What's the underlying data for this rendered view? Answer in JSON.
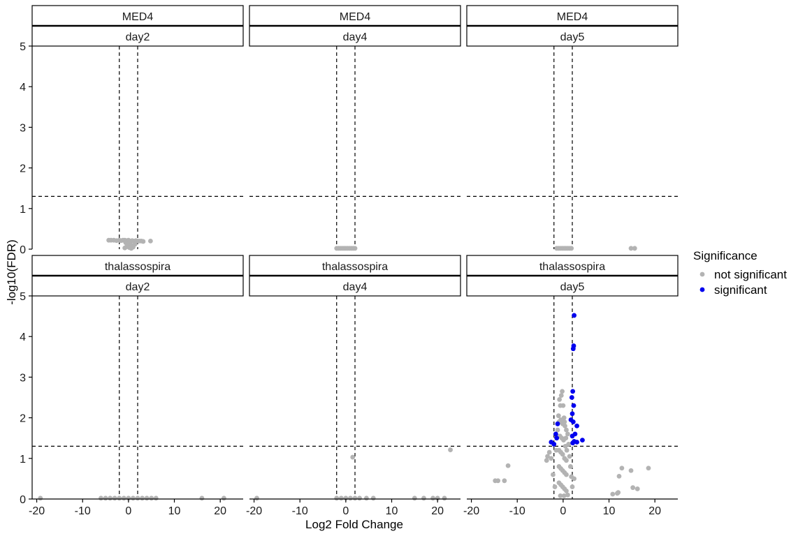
{
  "chart_data": {
    "type": "scatter",
    "title": "",
    "xlabel": "Log2 Fold Change",
    "ylabel": "-log10(FDR)",
    "xlim": [
      -21,
      25
    ],
    "ylim": [
      0,
      5
    ],
    "x_ticks": [
      -20,
      -10,
      0,
      10,
      20
    ],
    "y_ticks": [
      0,
      1,
      2,
      3,
      4,
      5
    ],
    "x_tick_labels": [
      "-20",
      "-10",
      "0",
      "10",
      "20"
    ],
    "y_tick_labels": [
      "0",
      "1",
      "2",
      "3",
      "4",
      "5"
    ],
    "vlines": [
      -2,
      2
    ],
    "hline": 1.3,
    "grid": false,
    "legend": {
      "title": "Significance",
      "position": "right",
      "entries": [
        {
          "label": "not significant",
          "color": "#b3b3b3"
        },
        {
          "label": "significant",
          "color": "#0000ee"
        }
      ]
    },
    "facets": [
      {
        "strain": "MED4",
        "day": "day2",
        "not_significant": [
          [
            -4.3,
            0.22
          ],
          [
            -3.8,
            0.22
          ],
          [
            -3.2,
            0.22
          ],
          [
            -2.6,
            0.21
          ],
          [
            -2.0,
            0.22
          ],
          [
            -1.6,
            0.21
          ],
          [
            -1.2,
            0.22
          ],
          [
            -0.8,
            0.22
          ],
          [
            -0.4,
            0.21
          ],
          [
            0,
            0.22
          ],
          [
            0.4,
            0.2
          ],
          [
            0.8,
            0.21
          ],
          [
            1.2,
            0.2
          ],
          [
            1.6,
            0.21
          ],
          [
            2.0,
            0.2
          ],
          [
            2.4,
            0.2
          ],
          [
            2.8,
            0.2
          ],
          [
            3.2,
            0.19
          ],
          [
            4.8,
            0.2
          ],
          [
            -0.6,
            0.16
          ],
          [
            -0.2,
            0.12
          ],
          [
            0.2,
            0.14
          ],
          [
            0.6,
            0.1
          ],
          [
            1.0,
            0.08
          ],
          [
            -0.4,
            0.06
          ],
          [
            0.2,
            0.04
          ],
          [
            0.6,
            0.02
          ],
          [
            1.0,
            0.05
          ],
          [
            1.4,
            0.12
          ],
          [
            -0.8,
            0.03
          ]
        ],
        "significant": []
      },
      {
        "strain": "MED4",
        "day": "day4",
        "not_significant": [
          [
            -2.0,
            0.02
          ],
          [
            -1.6,
            0.02
          ],
          [
            -1.2,
            0.02
          ],
          [
            -0.8,
            0.02
          ],
          [
            -0.4,
            0.02
          ],
          [
            0,
            0.02
          ],
          [
            0.4,
            0.02
          ],
          [
            0.8,
            0.02
          ],
          [
            1.2,
            0.02
          ],
          [
            1.6,
            0.02
          ],
          [
            2.0,
            0.02
          ]
        ],
        "significant": []
      },
      {
        "strain": "MED4",
        "day": "day5",
        "not_significant": [
          [
            -1.4,
            0.02
          ],
          [
            -1.0,
            0.02
          ],
          [
            -0.6,
            0.02
          ],
          [
            -0.2,
            0.02
          ],
          [
            0.2,
            0.02
          ],
          [
            0.6,
            0.02
          ],
          [
            1.0,
            0.02
          ],
          [
            1.4,
            0.02
          ],
          [
            1.8,
            0.02
          ],
          [
            14.8,
            0.02
          ],
          [
            15.6,
            0.02
          ]
        ],
        "significant": []
      },
      {
        "strain": "thalassospira",
        "day": "day2",
        "not_significant": [
          [
            -19.2,
            0.02
          ],
          [
            -6.0,
            0.02
          ],
          [
            -5.0,
            0.02
          ],
          [
            -4.0,
            0.02
          ],
          [
            -3.0,
            0.02
          ],
          [
            -2.0,
            0.02
          ],
          [
            -1.0,
            0.02
          ],
          [
            0,
            0.02
          ],
          [
            1.0,
            0.02
          ],
          [
            2.0,
            0.02
          ],
          [
            3.0,
            0.02
          ],
          [
            4.0,
            0.02
          ],
          [
            5.0,
            0.02
          ],
          [
            6.0,
            0.02
          ],
          [
            16.0,
            0.02
          ],
          [
            20.8,
            0.02
          ]
        ],
        "significant": []
      },
      {
        "strain": "thalassospira",
        "day": "day4",
        "not_significant": [
          [
            -19.4,
            0.02
          ],
          [
            -2.0,
            0.02
          ],
          [
            -1.0,
            0.02
          ],
          [
            0,
            0.02
          ],
          [
            1.0,
            0.02
          ],
          [
            2.0,
            0.02
          ],
          [
            3.0,
            0.02
          ],
          [
            4.5,
            0.02
          ],
          [
            6.0,
            0.02
          ],
          [
            15.0,
            0.02
          ],
          [
            17.0,
            0.02
          ],
          [
            19.0,
            0.02
          ],
          [
            20.0,
            0.02
          ],
          [
            21.5,
            0.02
          ],
          [
            1.5,
            1.03
          ],
          [
            22.8,
            1.21
          ]
        ],
        "significant": []
      },
      {
        "strain": "thalassospira",
        "day": "day5",
        "not_significant": [
          [
            -14.8,
            0.45
          ],
          [
            -14.2,
            0.45
          ],
          [
            -12.8,
            0.45
          ],
          [
            -12.0,
            0.82
          ],
          [
            -3.6,
            0.95
          ],
          [
            -3.4,
            1.05
          ],
          [
            -3.0,
            1.15
          ],
          [
            -2.6,
            1.0
          ],
          [
            -2.2,
            0.6
          ],
          [
            -1.8,
            0.3
          ],
          [
            -1.5,
            1.2
          ],
          [
            -1.2,
            1.7
          ],
          [
            -1.0,
            2.05
          ],
          [
            -0.8,
            2.45
          ],
          [
            -0.6,
            2.3
          ],
          [
            -0.4,
            2.55
          ],
          [
            -0.2,
            2.65
          ],
          [
            0,
            2.3
          ],
          [
            0.2,
            2.0
          ],
          [
            0.4,
            1.8
          ],
          [
            0.6,
            1.5
          ],
          [
            0.8,
            1.2
          ],
          [
            1.0,
            1.6
          ],
          [
            1.2,
            1.35
          ],
          [
            1.4,
            1.05
          ],
          [
            1.6,
            0.8
          ],
          [
            1.8,
            0.55
          ],
          [
            2.0,
            0.3
          ],
          [
            2.4,
            0.5
          ],
          [
            -0.9,
            1.9
          ],
          [
            -0.5,
            1.95
          ],
          [
            -0.1,
            1.85
          ],
          [
            0.3,
            1.9
          ],
          [
            0.7,
            1.7
          ],
          [
            -0.7,
            1.55
          ],
          [
            -0.3,
            1.5
          ],
          [
            0.1,
            1.45
          ],
          [
            0.5,
            1.3
          ],
          [
            -0.9,
            1.2
          ],
          [
            -0.5,
            1.15
          ],
          [
            -0.1,
            1.1
          ],
          [
            0.3,
            1.0
          ],
          [
            0.7,
            0.95
          ],
          [
            -0.9,
            0.8
          ],
          [
            -0.5,
            0.75
          ],
          [
            -0.1,
            0.7
          ],
          [
            0.3,
            0.65
          ],
          [
            0.7,
            0.6
          ],
          [
            -0.9,
            0.4
          ],
          [
            -0.5,
            0.35
          ],
          [
            -0.1,
            0.3
          ],
          [
            0.3,
            0.25
          ],
          [
            0.7,
            0.2
          ],
          [
            -0.6,
            0.08
          ],
          [
            0.2,
            0.08
          ],
          [
            1.0,
            0.1
          ],
          [
            10.8,
            0.12
          ],
          [
            11.8,
            0.14
          ],
          [
            12.0,
            0.16
          ],
          [
            12.2,
            0.56
          ],
          [
            12.8,
            0.76
          ],
          [
            14.8,
            0.7
          ],
          [
            15.2,
            0.28
          ],
          [
            16.2,
            0.25
          ],
          [
            18.6,
            0.76
          ]
        ],
        "significant": [
          [
            2.4,
            4.52
          ],
          [
            2.3,
            3.77
          ],
          [
            2.2,
            3.7
          ],
          [
            2.1,
            2.65
          ],
          [
            1.9,
            2.5
          ],
          [
            2.3,
            2.3
          ],
          [
            2.0,
            2.1
          ],
          [
            1.7,
            1.95
          ],
          [
            -1.2,
            1.85
          ],
          [
            2.2,
            1.9
          ],
          [
            3.0,
            1.8
          ],
          [
            -1.6,
            1.6
          ],
          [
            2.6,
            1.6
          ],
          [
            2.0,
            1.55
          ],
          [
            -1.4,
            1.5
          ],
          [
            -2.6,
            1.4
          ],
          [
            -2.0,
            1.35
          ],
          [
            2.4,
            1.42
          ],
          [
            3.0,
            1.4
          ],
          [
            4.2,
            1.45
          ],
          [
            2.1,
            1.38
          ]
        ]
      }
    ]
  }
}
